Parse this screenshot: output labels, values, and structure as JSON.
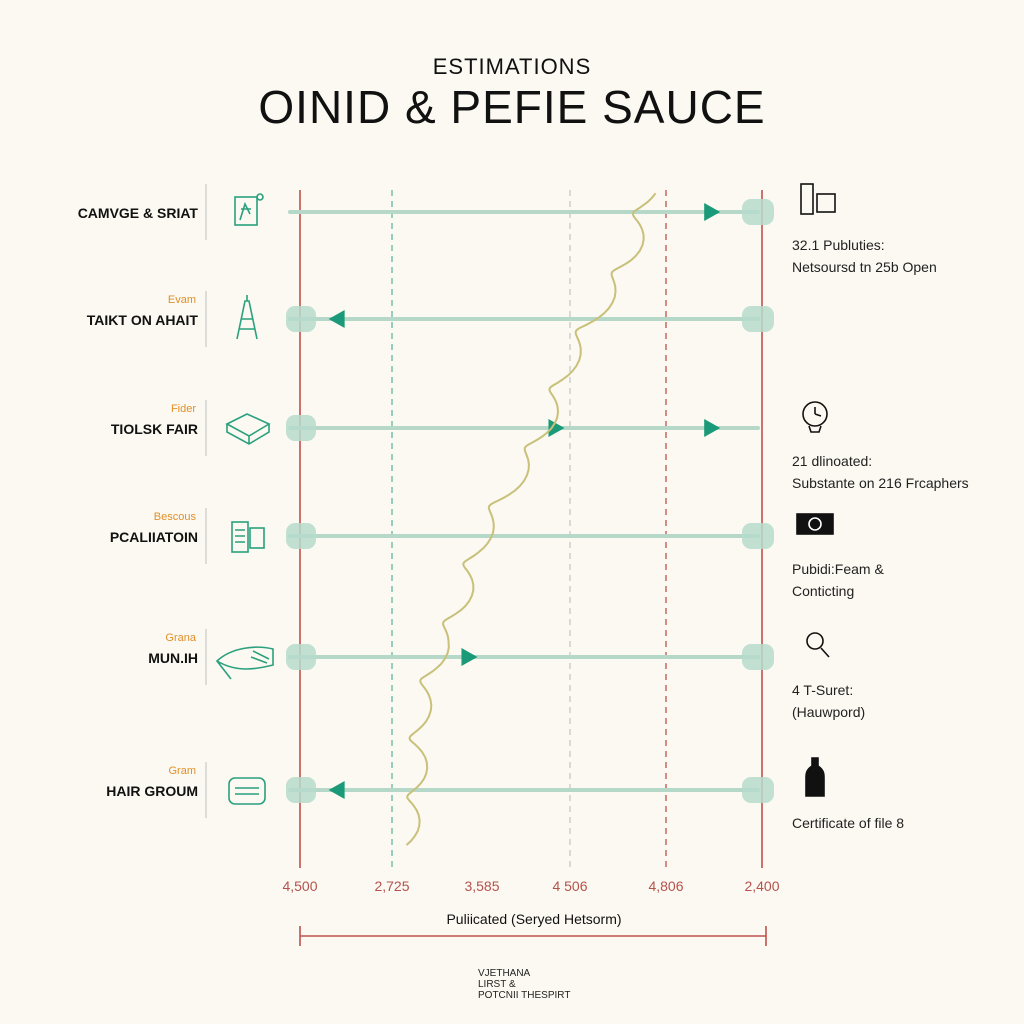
{
  "header": {
    "supertitle": "ESTIMATIONS",
    "title": "OINID & PEFIE SAUCE"
  },
  "footer": {
    "lines": [
      "VJETHANA",
      "LIRST &",
      "POTCNII THESPIRT"
    ]
  },
  "colors": {
    "background": "#fbf9f1",
    "track": "#b5d8c9",
    "marker": "#1a9a78",
    "endcap": "#b6dccd",
    "red_guide": "#c0504d",
    "teal_guide": "#5fb8a4",
    "grey_guide": "#c8c8c8",
    "squiggle": "#c9c07a",
    "category_sub": "#e0902a",
    "icon": "#2aa07e"
  },
  "chart_data": {
    "type": "line",
    "title": "OINID & PEFIE SAUCE",
    "subtitle": "ESTIMATIONS",
    "xlabel": "Puliicated (Seryed Hetsorm)",
    "tick_labels": [
      "4,500",
      "2,725",
      "3,585",
      "4 506",
      "4,806",
      "2,400"
    ],
    "reference_lines": [
      {
        "tick": "4,500",
        "style": "solid",
        "color": "red_guide"
      },
      {
        "tick": "2,725",
        "style": "dashed",
        "color": "teal_guide"
      },
      {
        "tick": "4 506",
        "style": "dashed",
        "color": "grey_guide"
      },
      {
        "tick": "4,806",
        "style": "dashed",
        "color": "red_guide"
      },
      {
        "tick": "2,400",
        "style": "solid",
        "color": "red_guide"
      }
    ],
    "categories": [
      {
        "name": "CAMVGE & SRIAT",
        "sub": "",
        "icon": "document-icon",
        "marker_x": 0.9,
        "direction": "right",
        "start_cap": false,
        "end_cap": true,
        "note_icon": "laptop-icon",
        "note": [
          "32.1 Publuties:",
          "Netsoursd tn 25b Open"
        ]
      },
      {
        "name": "TAIKT ON AHAIT",
        "sub": "Evam",
        "icon": "tower-icon",
        "marker_x": 0.08,
        "direction": "left",
        "start_cap": true,
        "end_cap": true,
        "note_icon": "",
        "note": []
      },
      {
        "name": "TIOLSK FAIR",
        "sub": "Fider",
        "icon": "box-icon",
        "marker_x": 0.56,
        "direction": "right",
        "start_cap": true,
        "end_cap": false,
        "second_marker_x": 0.9,
        "note_icon": "clock-icon",
        "note": [
          "21 dlinoated:",
          "Substante on 216 Frcaphers"
        ]
      },
      {
        "name": "PCALIIATOIN",
        "sub": "Bescous",
        "icon": "card-icon",
        "marker_x": null,
        "direction": "none",
        "start_cap": true,
        "end_cap": true,
        "note_icon": "badge-icon",
        "note": [
          "Pubidi:Feam &",
          "Conticting"
        ]
      },
      {
        "name": "MUN.IH",
        "sub": "Grana",
        "icon": "fish-icon",
        "marker_x": 0.37,
        "direction": "right",
        "start_cap": true,
        "end_cap": true,
        "note_icon": "magnifier-icon",
        "note": [
          "4 T-Suret:",
          "(Hauwpord)"
        ]
      },
      {
        "name": "HAIR GROUM",
        "sub": "Gram",
        "icon": "jar-icon",
        "marker_x": 0.08,
        "direction": "left",
        "start_cap": true,
        "end_cap": true,
        "note_icon": "bottle-icon",
        "note": [
          "Certificate of file 8"
        ]
      }
    ],
    "trend_path": [
      [
        0.0,
        0.02
      ],
      [
        0.15,
        0.06
      ],
      [
        0.3,
        0.12
      ],
      [
        0.45,
        0.25
      ],
      [
        0.6,
        0.4
      ],
      [
        0.75,
        0.55
      ],
      [
        0.9,
        0.7
      ],
      [
        1.0,
        0.78
      ]
    ],
    "grid": false,
    "legend": "none"
  }
}
